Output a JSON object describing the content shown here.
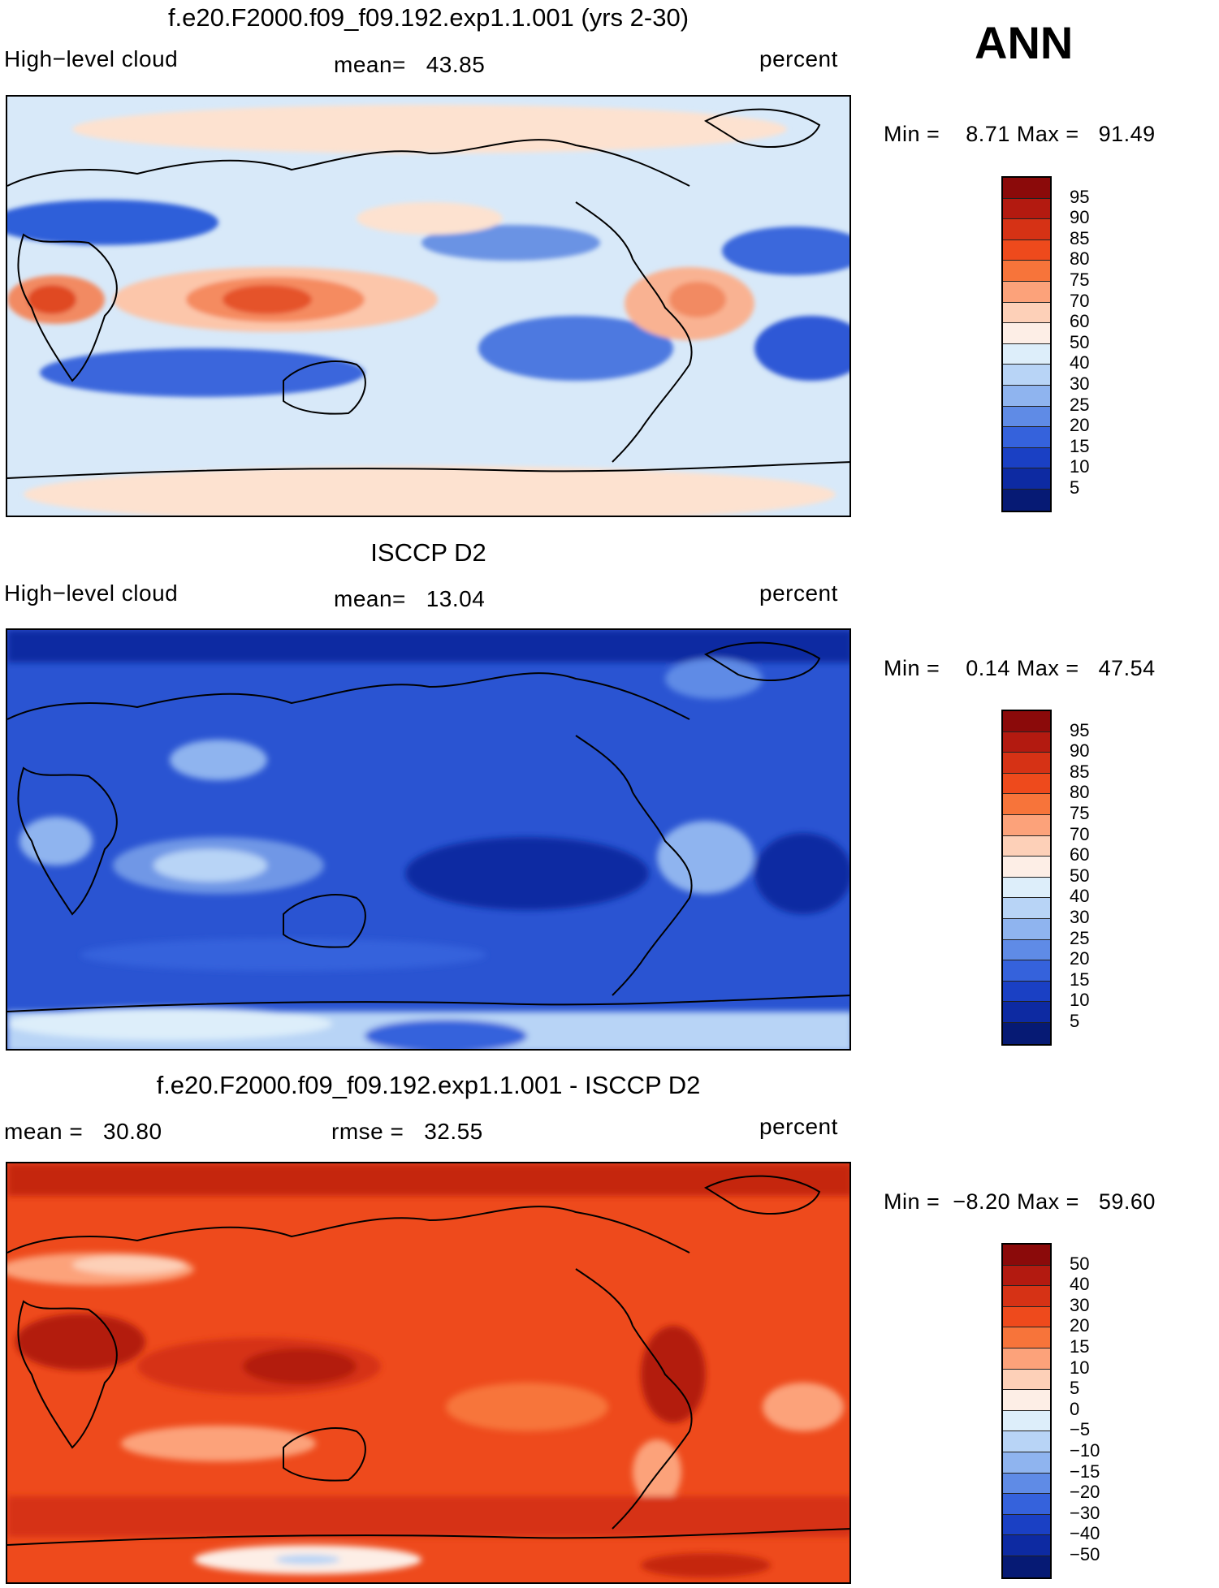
{
  "annotation": "ANN",
  "panels": [
    {
      "id": "model",
      "title": "f.e20.F2000.f09_f09.192.exp1.1.001 (yrs 2-30)",
      "left_label": "High−level cloud",
      "center_label": "mean=   43.85",
      "right_label": "percent",
      "min_max": "Min =    8.71 Max =   91.49",
      "colorbar_labels": [
        "95",
        "90",
        "85",
        "80",
        "75",
        "70",
        "60",
        "50",
        "40",
        "30",
        "25",
        "20",
        "15",
        "10",
        "5"
      ],
      "colorbar_colors": [
        "#8b0a0a",
        "#b31a10",
        "#d63215",
        "#ee4a1c",
        "#f7743a",
        "#fca27a",
        "#fdd0b8",
        "#fdeee6",
        "#ddeefa",
        "#b8d4f6",
        "#8fb4ef",
        "#5f8be6",
        "#3562dc",
        "#1a40c4",
        "#0d2aa2",
        "#061a74"
      ]
    },
    {
      "id": "obs",
      "title": "ISCCP D2",
      "left_label": "High−level cloud",
      "center_label": "mean=   13.04",
      "right_label": "percent",
      "min_max": "Min =    0.14 Max =   47.54",
      "colorbar_labels": [
        "95",
        "90",
        "85",
        "80",
        "75",
        "70",
        "60",
        "50",
        "40",
        "30",
        "25",
        "20",
        "15",
        "10",
        "5"
      ],
      "colorbar_colors": [
        "#8b0a0a",
        "#b31a10",
        "#d63215",
        "#ee4a1c",
        "#f7743a",
        "#fca27a",
        "#fdd0b8",
        "#fdeee6",
        "#ddeefa",
        "#b8d4f6",
        "#8fb4ef",
        "#5f8be6",
        "#3562dc",
        "#1a40c4",
        "#0d2aa2",
        "#061a74"
      ]
    },
    {
      "id": "diff",
      "title": "f.e20.F2000.f09_f09.192.exp1.1.001 - ISCCP D2",
      "left_label": "mean =   30.80",
      "center_label": "rmse =   32.55",
      "right_label": "percent",
      "min_max": "Min =  −8.20 Max =   59.60",
      "colorbar_labels": [
        "50",
        "40",
        "30",
        "20",
        "15",
        "10",
        "5",
        "0",
        "−5",
        "−10",
        "−15",
        "−20",
        "−30",
        "−40",
        "−50"
      ],
      "colorbar_colors": [
        "#8b0a0a",
        "#b31a10",
        "#d63215",
        "#ee4a1c",
        "#f7743a",
        "#fca27a",
        "#fdd0b8",
        "#fdeee6",
        "#ddeefa",
        "#b8d4f6",
        "#8fb4ef",
        "#5f8be6",
        "#3562dc",
        "#1a40c4",
        "#0d2aa2",
        "#061a74"
      ]
    }
  ]
}
